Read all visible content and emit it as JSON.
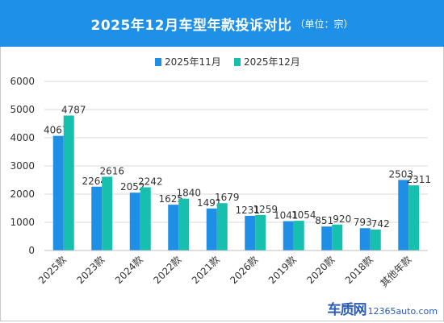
{
  "header": {
    "title": "2025年12月车型年款投诉对比",
    "unit": "（单位：宗）"
  },
  "colors": {
    "header_bg": "#1e90e8",
    "series_1": "#1f8fe5",
    "series_2": "#17bfae",
    "grid": "#d9d9d9",
    "text": "#333333"
  },
  "chart_data": {
    "type": "bar",
    "title": "2025年12月车型年款投诉对比",
    "unit": "单位：宗",
    "categories": [
      "2025款",
      "2023款",
      "2024款",
      "2022款",
      "2021款",
      "2026款",
      "2019款",
      "2020款",
      "2018款",
      "其他年款"
    ],
    "series": [
      {
        "name": "2025年11月",
        "values": [
          4067,
          2264,
          2052,
          1625,
          1491,
          1231,
          1041,
          851,
          793,
          2503
        ]
      },
      {
        "name": "2025年12月",
        "values": [
          4787,
          2616,
          2242,
          1840,
          1679,
          1259,
          1054,
          920,
          742,
          2311
        ]
      }
    ],
    "ylim": [
      0,
      6000
    ],
    "yticks": [
      0,
      1000,
      2000,
      3000,
      4000,
      5000,
      6000
    ],
    "grid": true,
    "legend": "top"
  },
  "watermark": {
    "brand": "车质网",
    "site": "12365auto.com"
  }
}
